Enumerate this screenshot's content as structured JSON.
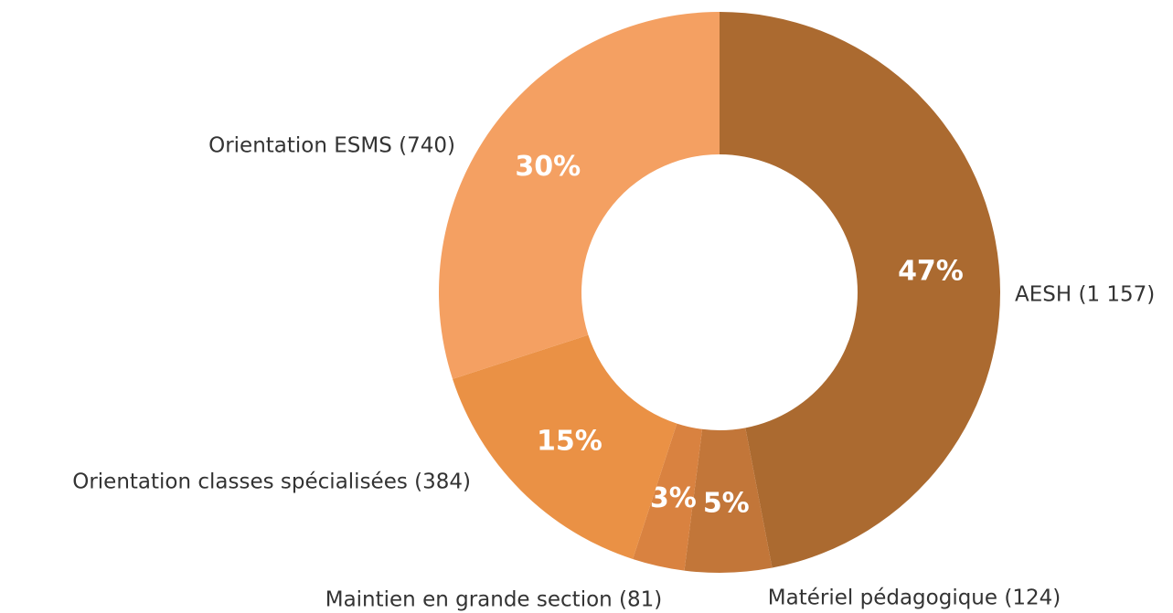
{
  "chart_data": {
    "type": "donut",
    "categories": [
      "AESH (1 157)",
      "Matériel pédagogique (124)",
      "Maintien en grande section (81)",
      "Orientation classes spécialisées (384)",
      "Orientation ESMS (740)"
    ],
    "values": [
      47,
      5,
      3,
      15,
      30
    ],
    "value_labels": [
      "47%",
      "5%",
      "3%",
      "15%",
      "30%"
    ],
    "colors": [
      "#ab6a30",
      "#c27639",
      "#d98240",
      "#ea9145",
      "#f4a062"
    ]
  }
}
